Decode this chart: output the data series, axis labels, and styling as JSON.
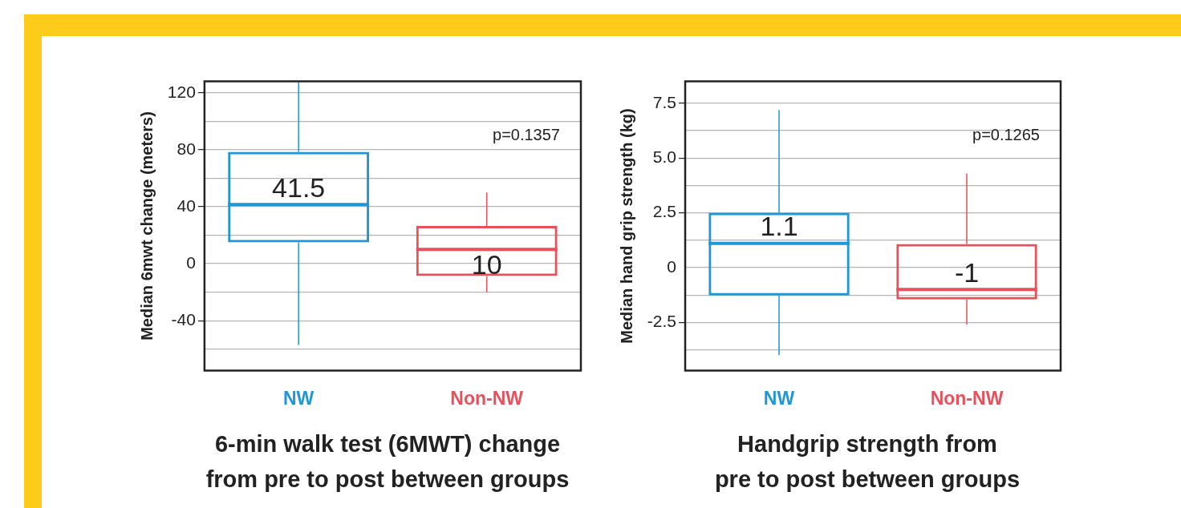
{
  "chart_data": [
    {
      "type": "box",
      "title": "6-min walk test (6MWT) change\nfrom pre to post between groups",
      "ylabel": "Median 6mwt change (meters)",
      "categories": [
        "NW",
        "Non-NW"
      ],
      "colors": [
        "#1f96d6",
        "#e8505b"
      ],
      "boxes": [
        {
          "low": -57,
          "q1": 15,
          "median": 41.5,
          "q3": 78.5,
          "high": 128
        },
        {
          "low": -20,
          "q1": -8.7,
          "median": 10,
          "q3": 26.5,
          "high": 50
        }
      ],
      "ylim": [
        -75,
        128
      ],
      "yticks": [
        {
          "value": -60,
          "label": null
        },
        -40,
        {
          "value": -20,
          "label": null
        },
        0,
        {
          "value": 20,
          "label": null
        },
        40,
        {
          "value": 60,
          "label": null
        },
        80,
        {
          "value": 100,
          "label": null
        },
        120
      ],
      "grid": "y",
      "value_labels": [
        "41.5",
        "10"
      ],
      "annotations": [
        "p=0.1357"
      ]
    },
    {
      "type": "box",
      "title": "Handgrip strength from\npre to post between groups",
      "ylabel": "Median hand grip strength (kg)",
      "categories": [
        "NW",
        "Non-NW"
      ],
      "colors": [
        "#1f96d6",
        "#e8505b"
      ],
      "boxes": [
        {
          "low": -4.0,
          "q1": -1.27,
          "median": 1.1,
          "q3": 2.5,
          "high": 7.2
        },
        {
          "low": -2.6,
          "q1": -1.46,
          "median": -1,
          "q3": 1.08,
          "high": 4.3
        }
      ],
      "ylim": [
        -4.7,
        8.5
      ],
      "yticks": [
        {
          "value": -3.75,
          "label": null
        },
        {
          "value": -2.5,
          "label": "-2.5"
        },
        {
          "value": -1.25,
          "label": null
        },
        0,
        {
          "value": 1.25,
          "label": null
        },
        {
          "value": 2.5,
          "label": "2.5"
        },
        {
          "value": 3.75,
          "label": null
        },
        {
          "value": 5,
          "label": "5.0"
        },
        {
          "value": 6.25,
          "label": null
        },
        {
          "value": 7.5,
          "label": "7.5"
        }
      ],
      "grid": "y",
      "value_labels": [
        "1.1",
        "-1"
      ],
      "annotations": [
        "p=0.1265"
      ]
    }
  ]
}
